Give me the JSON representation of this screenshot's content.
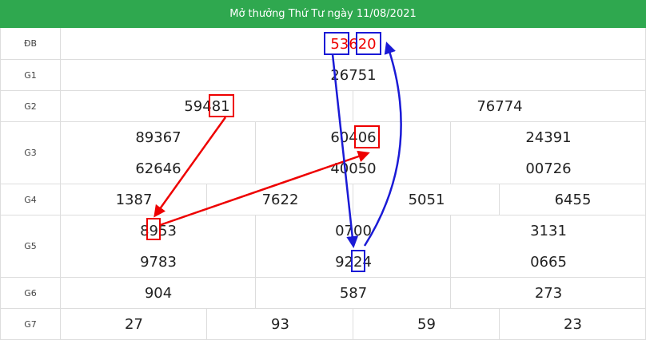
{
  "header": {
    "title": "Mở thưởng Thứ Tư ngày 11/08/2021"
  },
  "rows": [
    {
      "label": "ĐB",
      "values": [
        "53620"
      ]
    },
    {
      "label": "G1",
      "values": [
        "26751"
      ]
    },
    {
      "label": "G2",
      "values": [
        "59481",
        "76774"
      ]
    },
    {
      "label": "G3",
      "values": [
        "89367",
        "60406",
        "24391",
        "62646",
        "40050",
        "00726"
      ]
    },
    {
      "label": "G4",
      "values": [
        "1387",
        "7622",
        "5051",
        "6455"
      ]
    },
    {
      "label": "G5",
      "values": [
        "8953",
        "0700",
        "3131",
        "9783",
        "9224",
        "0665"
      ]
    },
    {
      "label": "G6",
      "values": [
        "904",
        "587",
        "273"
      ]
    },
    {
      "label": "G7",
      "values": [
        "27",
        "93",
        "59",
        "23"
      ]
    }
  ]
}
